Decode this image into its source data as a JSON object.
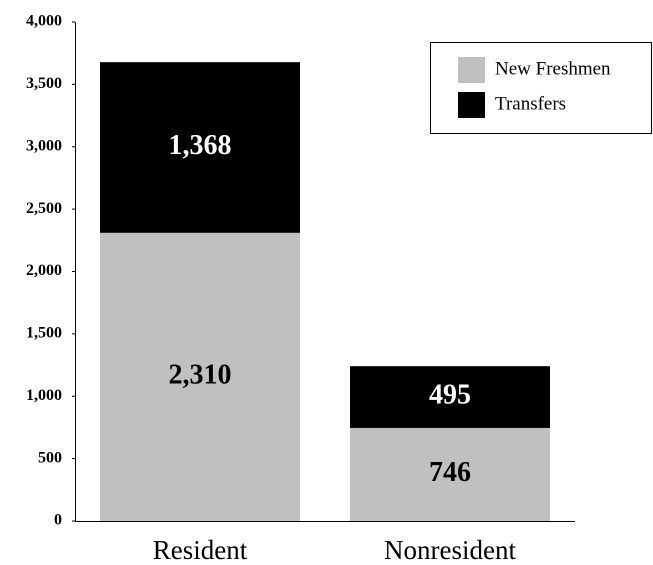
{
  "chart_data": {
    "type": "stacked_bar",
    "categories": [
      "Resident",
      "Nonresident"
    ],
    "series": [
      {
        "name": "New Freshmen",
        "color": "#c0c0c0",
        "values": [
          2310,
          746
        ],
        "value_labels": [
          "2,310",
          "746"
        ],
        "label_color": "#000000"
      },
      {
        "name": "Transfers",
        "color": "#000000",
        "values": [
          1368,
          495
        ],
        "value_labels": [
          "1,368",
          "495"
        ],
        "label_color": "#ffffff"
      }
    ],
    "ylim": [
      0,
      4000
    ],
    "yticks": [
      0,
      500,
      {
        "value": 1000,
        "label": "1,000"
      },
      {
        "value": 1500,
        "label": "1,500"
      },
      {
        "value": 2000,
        "label": "2,000"
      },
      {
        "value": 2500,
        "label": "2,500"
      },
      {
        "value": 3000,
        "label": "3,000"
      },
      {
        "value": 3500,
        "label": "3,500"
      },
      {
        "value": 4000,
        "label": "4,000"
      }
    ],
    "grid": false,
    "legend": "top-right"
  }
}
